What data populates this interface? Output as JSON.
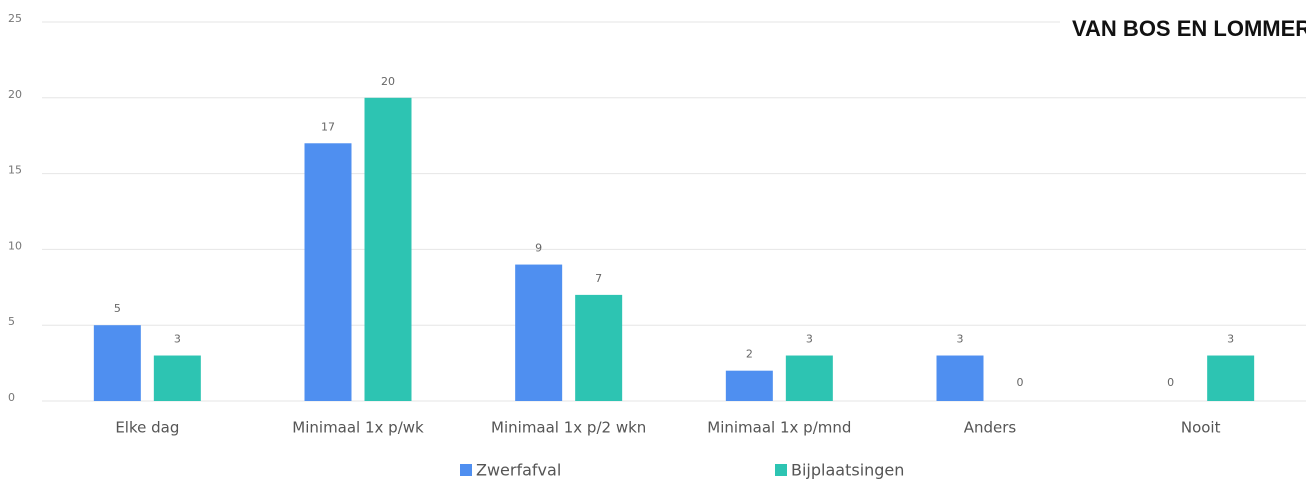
{
  "chart_data": {
    "type": "bar",
    "annotation": "VAN BOS EN LOMMER",
    "categories": [
      "Elke dag",
      "Minimaal 1x p/wk",
      "Minimaal 1x p/2 wkn",
      "Minimaal 1x p/mnd",
      "Anders",
      "Nooit"
    ],
    "series": [
      {
        "name": "Zwerfafval",
        "color": "#4f8ff0",
        "values": [
          5,
          17,
          9,
          2,
          3,
          0
        ]
      },
      {
        "name": "Bijplaatsingen",
        "color": "#2dc4b2",
        "values": [
          3,
          20,
          7,
          3,
          0,
          3
        ]
      }
    ],
    "ylim": [
      0,
      25
    ],
    "yticks": [
      0,
      5,
      10,
      15,
      20,
      25
    ],
    "grid": true,
    "legend": "bottom"
  }
}
